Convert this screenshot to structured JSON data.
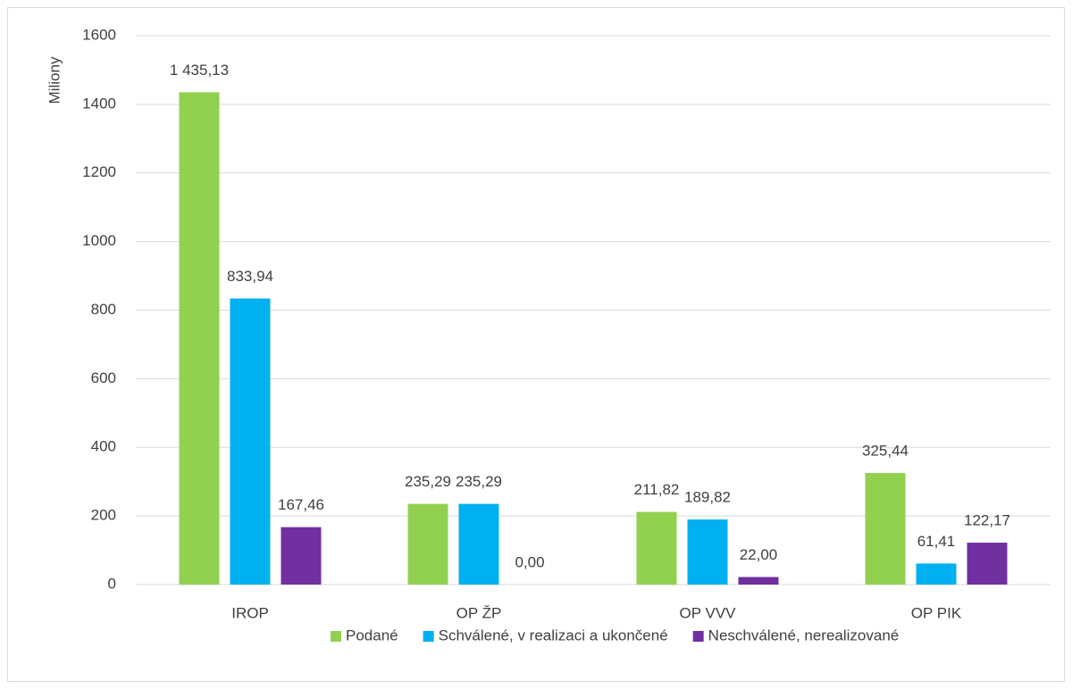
{
  "chart_data": {
    "type": "bar",
    "y_label": "Miliony",
    "categories": [
      "IROP",
      "OP ŽP",
      "OP VVV",
      "OP PIK"
    ],
    "series": [
      {
        "name": "Podané",
        "color": "#92d050",
        "values": [
          1435.13,
          235.29,
          211.82,
          325.44
        ],
        "value_labels": [
          "1 435,13",
          "235,29",
          "211,82",
          "325,44"
        ]
      },
      {
        "name": "Schválené, v realizaci a ukončené",
        "color": "#00b0f0",
        "values": [
          833.94,
          235.29,
          189.82,
          61.41
        ],
        "value_labels": [
          "833,94",
          "235,29",
          "189,82",
          "61,41"
        ]
      },
      {
        "name": "Neschválené, nerealizované",
        "color": "#7030a0",
        "values": [
          167.46,
          0.0,
          22.0,
          122.17
        ],
        "value_labels": [
          "167,46",
          "0,00",
          "22,00",
          "122,17"
        ]
      }
    ],
    "ylim": [
      0,
      1600
    ],
    "yticks": [
      0,
      200,
      400,
      600,
      800,
      1000,
      1200,
      1400,
      1600
    ],
    "grid": true,
    "legend": "bottom"
  }
}
